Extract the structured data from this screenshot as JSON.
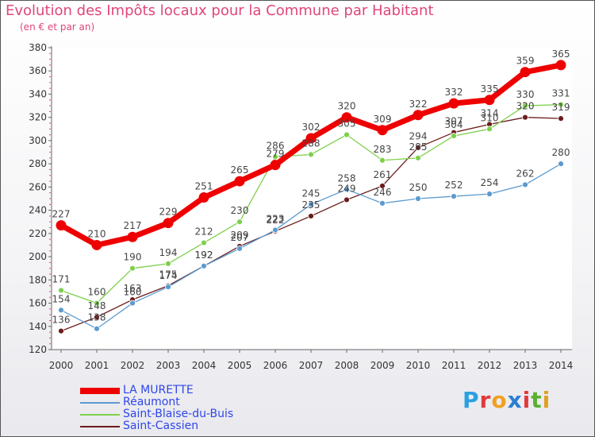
{
  "title": "Evolution des Impôts locaux pour la Commune par Habitant",
  "subtitle": "(en € et par an)",
  "brand": {
    "letters": [
      "P",
      "r",
      "o",
      "x",
      "i",
      "t",
      "i"
    ],
    "colors": [
      "#2aa0e0",
      "#e03a3a",
      "#f0a020",
      "#2a7fd0",
      "#e03a3a",
      "#5ab030",
      "#e0a020"
    ]
  },
  "chart_data": {
    "type": "line",
    "x": [
      2000,
      2001,
      2002,
      2003,
      2004,
      2005,
      2006,
      2007,
      2008,
      2009,
      2010,
      2011,
      2012,
      2013,
      2014
    ],
    "ylim": [
      120,
      380
    ],
    "yticks": [
      120,
      140,
      160,
      180,
      200,
      220,
      240,
      260,
      280,
      300,
      320,
      340,
      360,
      380
    ],
    "grid": false,
    "legend_position": "bottom",
    "series": [
      {
        "name": "LA MURETTE",
        "color": "#ee0000",
        "values": [
          227,
          210,
          217,
          229,
          251,
          265,
          279,
          302,
          320,
          309,
          322,
          332,
          335,
          359,
          365
        ]
      },
      {
        "name": "Réaumont",
        "color": "#5c9ad0",
        "values": [
          154,
          138,
          160,
          174,
          192,
          207,
          223,
          245,
          258,
          246,
          250,
          252,
          254,
          262,
          280
        ]
      },
      {
        "name": "Saint-Blaise-du-Buis",
        "color": "#7ed04c",
        "values": [
          171,
          160,
          190,
          194,
          212,
          230,
          286,
          288,
          305,
          283,
          285,
          304,
          310,
          330,
          331
        ]
      },
      {
        "name": "Saint-Cassien",
        "color": "#6a1c1c",
        "values": [
          136,
          148,
          163,
          175,
          192,
          209,
          222,
          235,
          249,
          261,
          294,
          307,
          314,
          320,
          319
        ]
      }
    ]
  }
}
